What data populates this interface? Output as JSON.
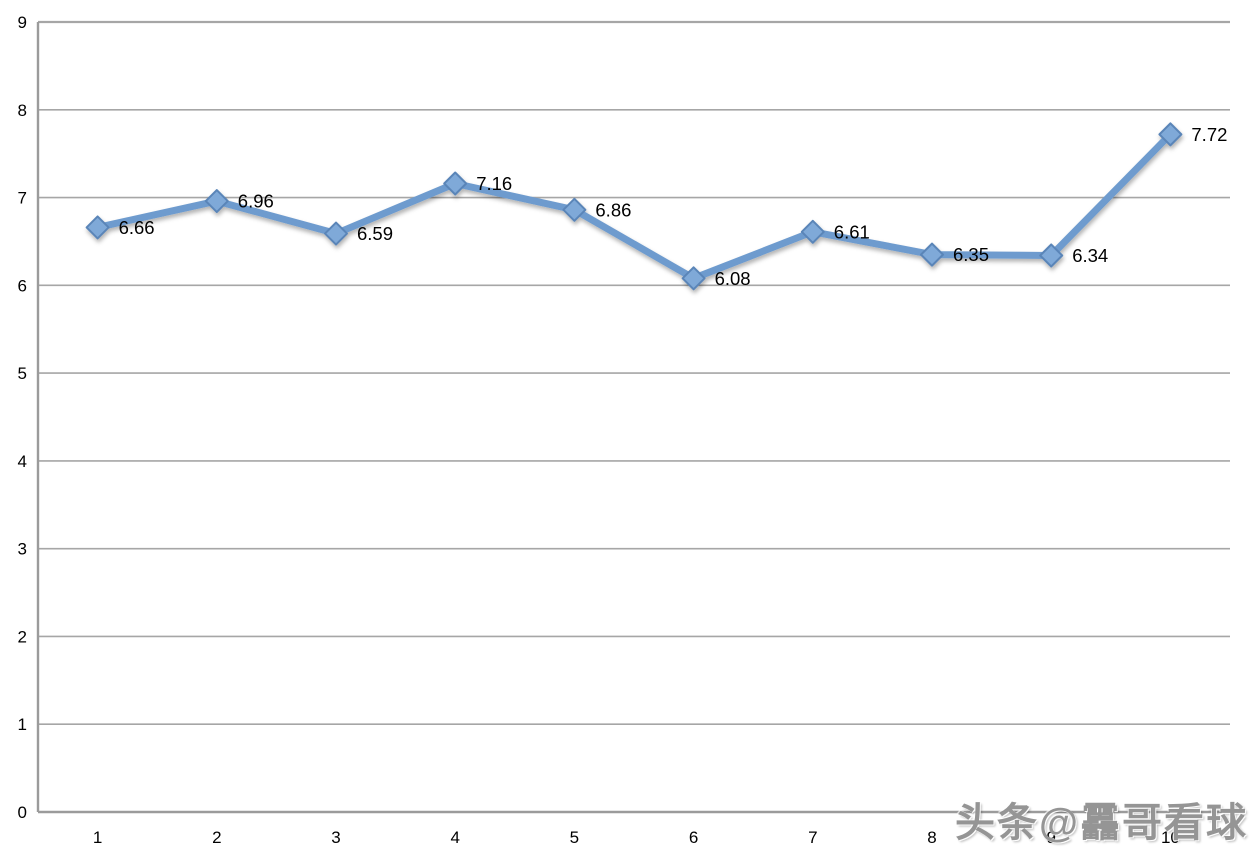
{
  "watermark": {
    "text": "头条@靐哥看球"
  },
  "chart_data": {
    "type": "line",
    "title": "",
    "xlabel": "",
    "ylabel": "",
    "x": [
      1,
      2,
      3,
      4,
      5,
      6,
      7,
      8,
      9,
      10
    ],
    "x_tick_labels": [
      "1",
      "2",
      "3",
      "4",
      "5",
      "6",
      "7",
      "8",
      "9",
      "10"
    ],
    "values": [
      6.66,
      6.96,
      6.59,
      7.16,
      6.86,
      6.08,
      6.61,
      6.35,
      6.34,
      7.72
    ],
    "point_labels": [
      "6.66",
      "6.96",
      "6.59",
      "7.16",
      "6.86",
      "6.08",
      "6.61",
      "6.35",
      "6.34",
      "7.72"
    ],
    "ylim": [
      0,
      9
    ],
    "yticks": [
      0,
      1,
      2,
      3,
      4,
      5,
      6,
      7,
      8,
      9
    ],
    "grid": true,
    "legend_position": "none",
    "line_color": "#6e9bce",
    "marker_shape": "diamond",
    "marker_fill": "#7fa9d8",
    "marker_stroke": "#5a85b8",
    "gridline_color": "#a6a6a6",
    "axis_color": "#9b9b9b",
    "tick_label_color": "#000000",
    "data_label_color": "#000000"
  }
}
